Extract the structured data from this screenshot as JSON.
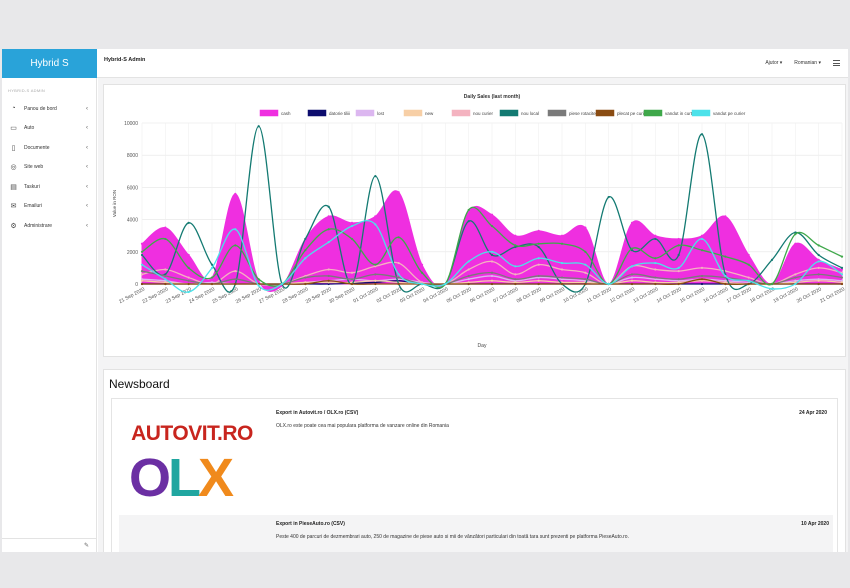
{
  "topbar": {
    "brand": "Hybrid S",
    "breadcrumb": "Hybrid-S Admin",
    "help_label": "Ajutor",
    "language_label": "Romanian"
  },
  "sidebar": {
    "heading": "HYBRID-S ADMIN",
    "items": [
      {
        "label": "Panou de bord",
        "icon": "gauge-icon"
      },
      {
        "label": "Auto",
        "icon": "car-icon"
      },
      {
        "label": "Documente",
        "icon": "document-icon"
      },
      {
        "label": "Site web",
        "icon": "globe-icon"
      },
      {
        "label": "Taskuri",
        "icon": "tasks-icon"
      },
      {
        "label": "Emailuri",
        "icon": "envelope-icon"
      },
      {
        "label": "Administrare",
        "icon": "cog-icon"
      }
    ]
  },
  "chart_data": {
    "type": "area",
    "title": "Daily Sales (last month)",
    "xlabel": "Day",
    "ylabel": "Value in RON",
    "ylim": [
      0,
      10000
    ],
    "yticks": [
      0,
      2000,
      4000,
      6000,
      8000,
      10000
    ],
    "grid": true,
    "legend_placement": "top",
    "categories": [
      "21 Sep 2020",
      "22 Sep 2020",
      "23 Sep 2020",
      "24 Sep 2020",
      "25 Sep 2020",
      "26 Sep 2020",
      "27 Sep 2020",
      "28 Sep 2020",
      "29 Sep 2020",
      "30 Sep 2020",
      "01 Oct 2020",
      "02 Oct 2020",
      "03 Oct 2020",
      "04 Oct 2020",
      "05 Oct 2020",
      "06 Oct 2020",
      "07 Oct 2020",
      "08 Oct 2020",
      "09 Oct 2020",
      "10 Oct 2020",
      "11 Oct 2020",
      "12 Oct 2020",
      "13 Oct 2020",
      "14 Oct 2020",
      "15 Oct 2020",
      "16 Oct 2020",
      "17 Oct 2020",
      "18 Oct 2020",
      "19 Oct 2020",
      "20 Oct 2020",
      "21 Oct 2020"
    ],
    "series": [
      {
        "name": "cash",
        "color": "#ef2fe0",
        "fill": true,
        "values": [
          2500,
          3500,
          1800,
          400,
          5600,
          200,
          -100,
          2800,
          4200,
          3800,
          4200,
          5700,
          1200,
          0,
          4500,
          4300,
          3000,
          3300,
          3000,
          3500,
          0,
          3800,
          3000,
          2800,
          3000,
          4200,
          1800,
          0,
          2500,
          1500,
          900
        ]
      },
      {
        "name": "datorie tiliii",
        "color": "#0d0d6e",
        "fill": false,
        "values": [
          0,
          0,
          0,
          0,
          0,
          0,
          0,
          0,
          0,
          50,
          100,
          200,
          0,
          0,
          0,
          0,
          0,
          0,
          0,
          0,
          0,
          0,
          0,
          0,
          0,
          0,
          0,
          0,
          0,
          0,
          0
        ]
      },
      {
        "name": "lost",
        "color": "#dcb7f0",
        "fill": false,
        "values": [
          300,
          200,
          0,
          100,
          0,
          0,
          0,
          100,
          200,
          300,
          200,
          300,
          100,
          0,
          300,
          500,
          200,
          400,
          300,
          200,
          0,
          400,
          300,
          200,
          300,
          200,
          100,
          0,
          200,
          300,
          200
        ]
      },
      {
        "name": "new",
        "color": "#f7cfa6",
        "fill": false,
        "values": [
          200,
          100,
          0,
          0,
          0,
          0,
          0,
          100,
          100,
          100,
          200,
          100,
          0,
          0,
          100,
          200,
          100,
          200,
          100,
          100,
          0,
          200,
          100,
          100,
          200,
          100,
          0,
          0,
          100,
          200,
          100
        ]
      },
      {
        "name": "nou curier",
        "color": "#f4b3c0",
        "fill": false,
        "values": [
          600,
          900,
          400,
          0,
          800,
          0,
          0,
          500,
          900,
          700,
          1100,
          1300,
          100,
          0,
          900,
          1400,
          600,
          1200,
          900,
          700,
          0,
          1100,
          900,
          800,
          1000,
          800,
          400,
          0,
          600,
          1000,
          700
        ]
      },
      {
        "name": "nou local",
        "color": "#137a72",
        "fill": false,
        "values": [
          1800,
          600,
          3800,
          1200,
          0,
          9800,
          0,
          2800,
          4800,
          0,
          6700,
          0,
          0,
          0,
          3900,
          1800,
          2300,
          2300,
          0,
          0,
          5400,
          2100,
          2800,
          1800,
          9300,
          600,
          0,
          1500,
          3200,
          1800,
          1000
        ]
      },
      {
        "name": "piese rotacite",
        "color": "#7a7a7a",
        "fill": false,
        "values": [
          800,
          500,
          200,
          0,
          300,
          0,
          0,
          400,
          500,
          300,
          600,
          400,
          0,
          0,
          500,
          700,
          300,
          500,
          400,
          300,
          0,
          600,
          400,
          300,
          500,
          400,
          200,
          0,
          400,
          600,
          400
        ]
      },
      {
        "name": "plecat pe curier",
        "color": "#8a4c12",
        "fill": false,
        "values": [
          0,
          0,
          0,
          0,
          0,
          0,
          0,
          0,
          200,
          0,
          0,
          0,
          0,
          0,
          0,
          0,
          0,
          0,
          0,
          0,
          0,
          0,
          0,
          0,
          300,
          0,
          0,
          0,
          0,
          0,
          0
        ]
      },
      {
        "name": "vandut in curte",
        "color": "#3fa84a",
        "fill": false,
        "values": [
          2000,
          2800,
          1000,
          400,
          2400,
          300,
          0,
          2100,
          3400,
          2800,
          1200,
          2900,
          700,
          0,
          4600,
          3600,
          2400,
          2500,
          2500,
          2000,
          0,
          2200,
          1600,
          2400,
          2100,
          1700,
          1200,
          0,
          3100,
          2400,
          1700
        ]
      },
      {
        "name": "vandut pe curier",
        "color": "#4ce2ea",
        "fill": false,
        "values": [
          1200,
          300,
          -500,
          1000,
          3400,
          -100,
          0,
          1600,
          2600,
          3600,
          3700,
          600,
          0,
          0,
          1400,
          2000,
          1100,
          1600,
          1300,
          1200,
          0,
          1100,
          1300,
          1000,
          2800,
          500,
          200,
          -300,
          0,
          1400,
          600
        ]
      }
    ]
  },
  "newsboard": {
    "title": "Newsboard",
    "items": [
      {
        "title": "Export in Autovit.ro / OLX.ro (CSV)",
        "date": "24 Apr 2020",
        "text": "OLX.ro este poate cea mai populara platforma de vanzare online din Romania",
        "logo_text_1": "AUTOVIT.RO",
        "logo_text_2": "OLX"
      },
      {
        "title": "Export in PieseAuto.ro (CSV)",
        "date": "10 Apr 2020",
        "text": "Peste 400 de parcuri de dezmembrari auto, 250 de magazine de piese auto si mii de vânzători particulari din toată tara sunt prezenti pe platforma PieseAuto.ro."
      }
    ]
  }
}
